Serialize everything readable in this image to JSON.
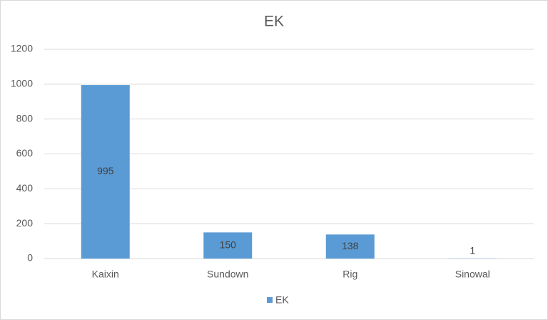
{
  "chart_data": {
    "type": "bar",
    "title": "EK",
    "categories": [
      "Kaixin",
      "Sundown",
      "Rig",
      "Sinowal"
    ],
    "series": [
      {
        "name": "EK",
        "color": "#5b9bd5",
        "values": [
          995,
          150,
          138,
          1
        ]
      }
    ],
    "ylim": [
      0,
      1200
    ],
    "yticks": [
      0,
      200,
      400,
      600,
      800,
      1000,
      1200
    ],
    "grid": true,
    "legend": "bottom"
  }
}
